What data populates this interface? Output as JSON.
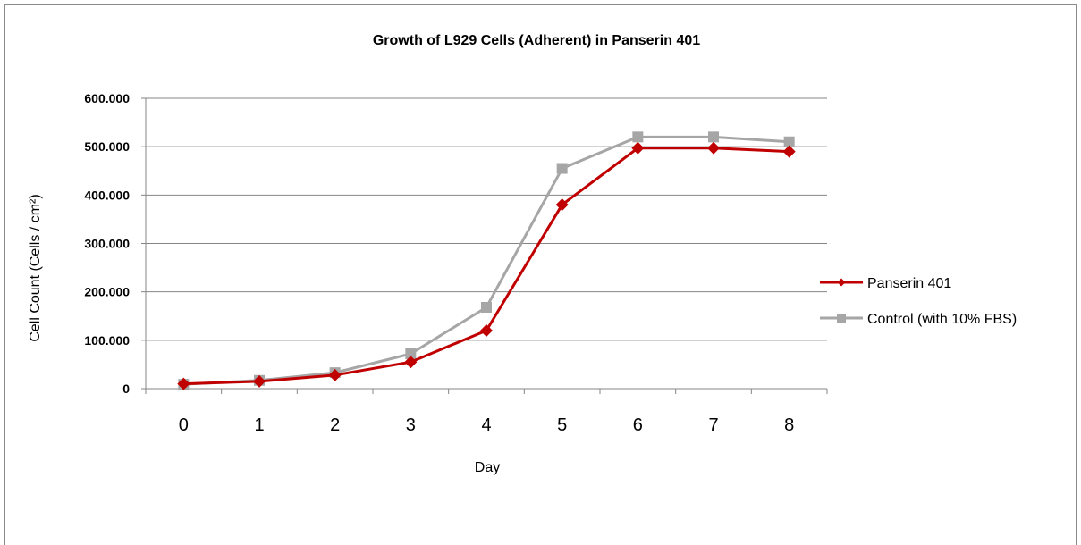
{
  "chart_data": {
    "type": "line",
    "title": "Growth of L929  Cells (Adherent) in Panserin 401",
    "xlabel": "Day",
    "ylabel": "Cell Count (Cells / cm²)",
    "x": [
      0,
      1,
      2,
      3,
      4,
      5,
      6,
      7,
      8
    ],
    "categories": [
      "0",
      "1",
      "2",
      "3",
      "4",
      "5",
      "6",
      "7",
      "8"
    ],
    "ylim": [
      0,
      600000
    ],
    "yticks": [
      0,
      100000,
      200000,
      300000,
      400000,
      500000,
      600000
    ],
    "ytick_labels": [
      "0",
      "100.000",
      "200.000",
      "300.000",
      "400.000",
      "500.000",
      "600.000"
    ],
    "grid": "horizontal",
    "legend_position": "right",
    "series": [
      {
        "name": "Panserin 401",
        "values": [
          10000,
          15000,
          28000,
          55000,
          120000,
          380000,
          497000,
          497000,
          490000
        ],
        "color": "#c00000",
        "marker": "diamond"
      },
      {
        "name": "Control (with 10% FBS)",
        "values": [
          9000,
          17000,
          33000,
          72000,
          168000,
          455000,
          520000,
          520000,
          510000
        ],
        "color": "#a6a6a6",
        "marker": "square"
      }
    ]
  }
}
